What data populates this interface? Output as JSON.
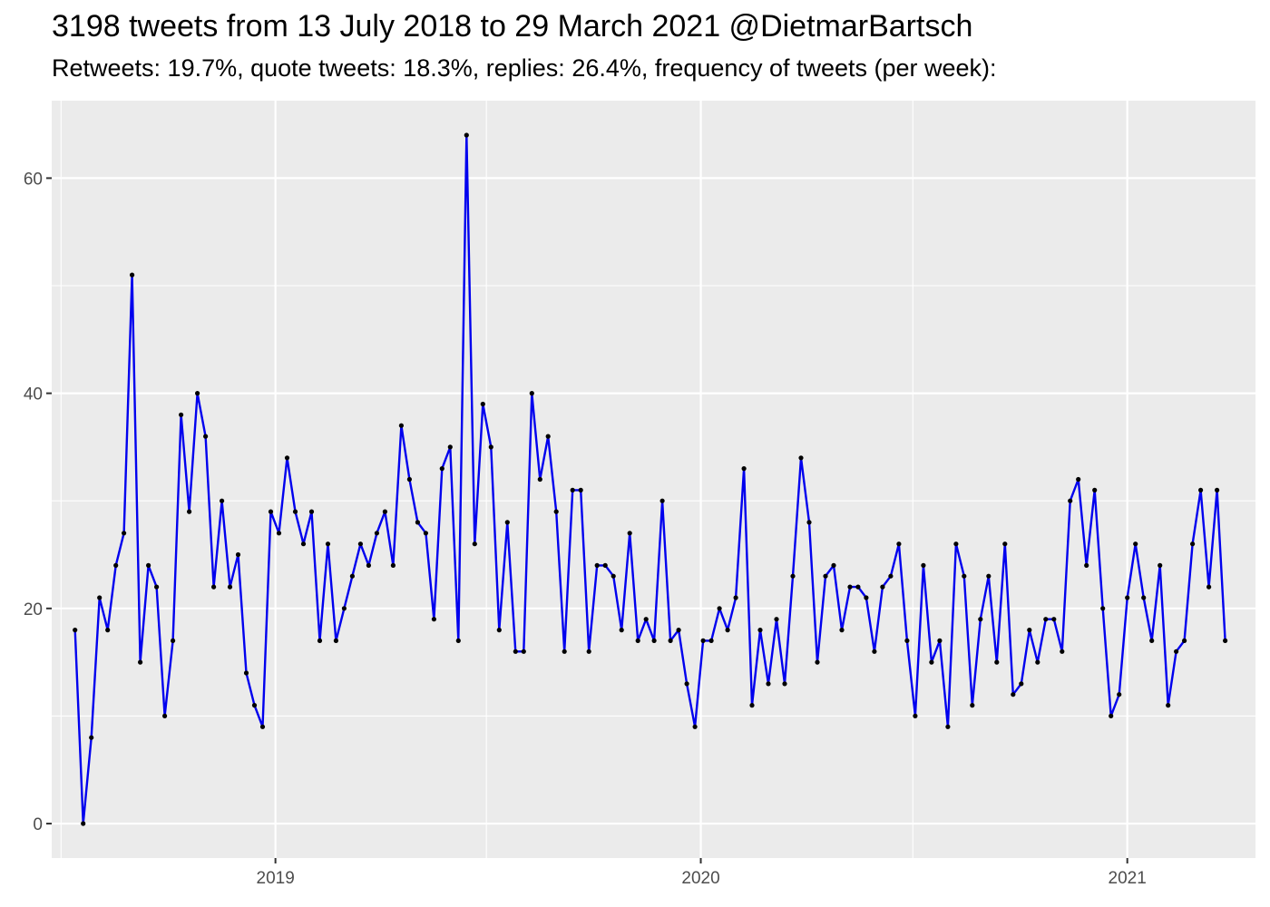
{
  "chart_data": {
    "type": "line",
    "title": "3198 tweets from 13 July 2018 to 29 March 2021 @DietmarBartsch",
    "subtitle": "Retweets: 19.7%, quote tweets: 18.3%, replies: 26.4%, frequency of tweets (per week):",
    "xlabel": "",
    "ylabel": "",
    "x_start": "2018-07-13",
    "x_end": "2021-03-29",
    "xlim": [
      "2018-06-23",
      "2021-04-21"
    ],
    "ylim": [
      -3.2,
      67.2
    ],
    "x_ticks": [
      "2019",
      "2020",
      "2021"
    ],
    "y_ticks": [
      0,
      20,
      40,
      60
    ],
    "grid": true,
    "legend": "none",
    "colors": {
      "line": "#0000ee",
      "point": "#000000",
      "panel": "#ebebeb",
      "grid": "#ffffff"
    },
    "series": [
      {
        "x": [
          "2018-07-13",
          "2018-07-20",
          "2018-07-27",
          "2018-08-03",
          "2018-08-10",
          "2018-08-17",
          "2018-08-24",
          "2018-08-31",
          "2018-09-07",
          "2018-09-14",
          "2018-09-21",
          "2018-09-28",
          "2018-10-05",
          "2018-10-12",
          "2018-10-19",
          "2018-10-26",
          "2018-11-02",
          "2018-11-09",
          "2018-11-16",
          "2018-11-23",
          "2018-11-30",
          "2018-12-07",
          "2018-12-14",
          "2018-12-21",
          "2018-12-28",
          "2019-01-04",
          "2019-01-11",
          "2019-01-18",
          "2019-01-25",
          "2019-02-01",
          "2019-02-08",
          "2019-02-15",
          "2019-02-22",
          "2019-03-01",
          "2019-03-08",
          "2019-03-15",
          "2019-03-22",
          "2019-03-29",
          "2019-04-05",
          "2019-04-12",
          "2019-04-19",
          "2019-04-26",
          "2019-05-03",
          "2019-05-10",
          "2019-05-17",
          "2019-05-24",
          "2019-05-31",
          "2019-06-07",
          "2019-06-14",
          "2019-06-21",
          "2019-06-28",
          "2019-07-05",
          "2019-07-12",
          "2019-07-19",
          "2019-07-26",
          "2019-08-02",
          "2019-08-09",
          "2019-08-16",
          "2019-08-23",
          "2019-08-30",
          "2019-09-06",
          "2019-09-13",
          "2019-09-20",
          "2019-09-27",
          "2019-10-04",
          "2019-10-11",
          "2019-10-18",
          "2019-10-25",
          "2019-11-01",
          "2019-11-08",
          "2019-11-15",
          "2019-11-22",
          "2019-11-29",
          "2019-12-06",
          "2019-12-13",
          "2019-12-20",
          "2019-12-27",
          "2020-01-03",
          "2020-01-10",
          "2020-01-17",
          "2020-01-24",
          "2020-01-31",
          "2020-02-07",
          "2020-02-14",
          "2020-02-21",
          "2020-02-28",
          "2020-03-06",
          "2020-03-13",
          "2020-03-20",
          "2020-03-27",
          "2020-04-03",
          "2020-04-10",
          "2020-04-17",
          "2020-04-24",
          "2020-05-01",
          "2020-05-08",
          "2020-05-15",
          "2020-05-22",
          "2020-05-29",
          "2020-06-05",
          "2020-06-12",
          "2020-06-19",
          "2020-06-26",
          "2020-07-03",
          "2020-07-10",
          "2020-07-17",
          "2020-07-24",
          "2020-07-31",
          "2020-08-07",
          "2020-08-14",
          "2020-08-21",
          "2020-08-28",
          "2020-09-04",
          "2020-09-11",
          "2020-09-18",
          "2020-09-25",
          "2020-10-02",
          "2020-10-09",
          "2020-10-16",
          "2020-10-23",
          "2020-10-30",
          "2020-11-06",
          "2020-11-13",
          "2020-11-20",
          "2020-11-27",
          "2020-12-04",
          "2020-12-11",
          "2020-12-18",
          "2020-12-25",
          "2021-01-01",
          "2021-01-08",
          "2021-01-15",
          "2021-01-22",
          "2021-01-29",
          "2021-02-05",
          "2021-02-12",
          "2021-02-19",
          "2021-02-26",
          "2021-03-05",
          "2021-03-12",
          "2021-03-19",
          "2021-03-26"
        ],
        "values": [
          18,
          0,
          8,
          21,
          18,
          24,
          27,
          51,
          15,
          24,
          22,
          10,
          17,
          38,
          29,
          40,
          36,
          22,
          30,
          22,
          25,
          14,
          11,
          9,
          29,
          27,
          34,
          29,
          26,
          29,
          17,
          26,
          17,
          20,
          23,
          26,
          24,
          27,
          29,
          24,
          37,
          32,
          28,
          27,
          19,
          33,
          35,
          17,
          64,
          26,
          39,
          35,
          18,
          28,
          16,
          16,
          40,
          32,
          36,
          29,
          16,
          31,
          31,
          16,
          24,
          24,
          23,
          18,
          27,
          17,
          19,
          17,
          30,
          17,
          18,
          13,
          9,
          17,
          17,
          20,
          18,
          21,
          33,
          11,
          18,
          13,
          19,
          13,
          23,
          34,
          28,
          15,
          23,
          24,
          18,
          22,
          22,
          21,
          16,
          22,
          23,
          26,
          17,
          10,
          24,
          15,
          17,
          9,
          26,
          23,
          11,
          19,
          23,
          15,
          26,
          12,
          13,
          18,
          15,
          19,
          19,
          16,
          30,
          32,
          24,
          31,
          20,
          10,
          12,
          21,
          26,
          21,
          17,
          24,
          11,
          16,
          17,
          26,
          31,
          22,
          31,
          17
        ]
      }
    ]
  }
}
